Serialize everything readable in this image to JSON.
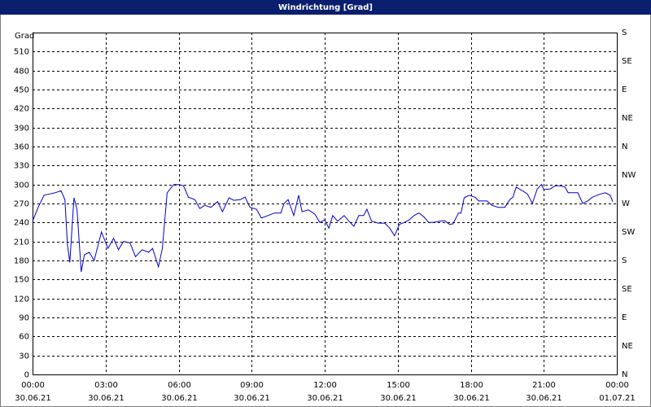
{
  "chart_data": {
    "type": "line",
    "title": "Windrichtung [Grad]",
    "y_label": "Grad",
    "xlim": [
      0,
      24
    ],
    "xticks": [
      {
        "value": 0,
        "label": "00:00"
      },
      {
        "value": 3,
        "label": "03:00"
      },
      {
        "value": 6,
        "label": "06:00"
      },
      {
        "value": 9,
        "label": "09:00"
      },
      {
        "value": 12,
        "label": "12:00"
      },
      {
        "value": 15,
        "label": "15:00"
      },
      {
        "value": 18,
        "label": "18:00"
      },
      {
        "value": 21,
        "label": "21:00"
      },
      {
        "value": 24,
        "label": "00:00"
      }
    ],
    "xtick_dates": [
      "30.06.21",
      "30.06.21",
      "30.06.21",
      "30.06.21",
      "30.06.21",
      "30.06.21",
      "30.06.21",
      "30.06.21",
      "01.07.21"
    ],
    "ylim": [
      0,
      540
    ],
    "yticks": [
      0,
      30,
      60,
      90,
      120,
      150,
      180,
      210,
      240,
      270,
      300,
      330,
      360,
      390,
      420,
      450,
      480,
      510
    ],
    "y2lim": [
      0,
      540
    ],
    "y2ticks": [
      {
        "value": 0,
        "label": "N"
      },
      {
        "value": 45,
        "label": "NE"
      },
      {
        "value": 90,
        "label": "E"
      },
      {
        "value": 135,
        "label": "SE"
      },
      {
        "value": 180,
        "label": "S"
      },
      {
        "value": 225,
        "label": "SW"
      },
      {
        "value": 270,
        "label": "W"
      },
      {
        "value": 315,
        "label": "NW"
      },
      {
        "value": 360,
        "label": "N"
      },
      {
        "value": 405,
        "label": "NE"
      },
      {
        "value": 450,
        "label": "E"
      },
      {
        "value": 495,
        "label": "SE"
      },
      {
        "value": 540,
        "label": "S"
      }
    ],
    "grid": true,
    "series": [
      {
        "color": "#0000cc",
        "x": [
          0,
          0.23,
          0.47,
          0.7,
          0.93,
          1.17,
          1.33,
          1.43,
          1.53,
          1.7,
          1.83,
          2,
          2.13,
          2.33,
          2.53,
          2.83,
          3.1,
          3.33,
          3.53,
          3.73,
          4,
          4.23,
          4.5,
          4.77,
          4.93,
          5.17,
          5.33,
          5.53,
          5.8,
          6,
          6.2,
          6.4,
          6.67,
          6.87,
          7.07,
          7.33,
          7.6,
          7.8,
          8.07,
          8.27,
          8.53,
          8.73,
          8.93,
          9.2,
          9.4,
          9.67,
          9.93,
          10.2,
          10.33,
          10.5,
          10.73,
          10.93,
          11.07,
          11.33,
          11.6,
          11.8,
          12,
          12.17,
          12.33,
          12.53,
          12.8,
          13,
          13.2,
          13.4,
          13.6,
          13.73,
          13.93,
          14.2,
          14.47,
          14.67,
          14.87,
          15.07,
          15.27,
          15.47,
          15.67,
          15.87,
          16.07,
          16.27,
          16.47,
          16.73,
          16.93,
          17.13,
          17.27,
          17.5,
          17.6,
          17.73,
          17.93,
          18.17,
          18.33,
          18.67,
          18.87,
          19.13,
          19.4,
          19.6,
          19.73,
          19.87,
          20.13,
          20.33,
          20.53,
          20.73,
          20.9,
          21,
          21.27,
          21.47,
          21.67,
          21.87,
          22,
          22.4,
          22.6,
          22.8,
          23,
          23.33,
          23.53,
          23.73,
          23.83
        ],
        "values": [
          242,
          264,
          283,
          285,
          287,
          290,
          276,
          206,
          177,
          279,
          260,
          162,
          189,
          193,
          180,
          225,
          199,
          215,
          197,
          210,
          208,
          186,
          197,
          193,
          199,
          170,
          199,
          287,
          300,
          300,
          298,
          280,
          276,
          262,
          267,
          264,
          273,
          257,
          279,
          275,
          276,
          280,
          264,
          261,
          247,
          251,
          255,
          255,
          270,
          276,
          251,
          283,
          257,
          260,
          253,
          240,
          244,
          231,
          251,
          242,
          251,
          242,
          234,
          251,
          251,
          261,
          242,
          239,
          239,
          231,
          219,
          237,
          240,
          244,
          251,
          255,
          249,
          240,
          240,
          242,
          243,
          237,
          238,
          255,
          255,
          279,
          283,
          280,
          274,
          274,
          267,
          264,
          264,
          276,
          280,
          296,
          290,
          285,
          270,
          293,
          300,
          292,
          293,
          298,
          298,
          296,
          287,
          287,
          270,
          274,
          280,
          285,
          287,
          283,
          273
        ]
      }
    ]
  }
}
